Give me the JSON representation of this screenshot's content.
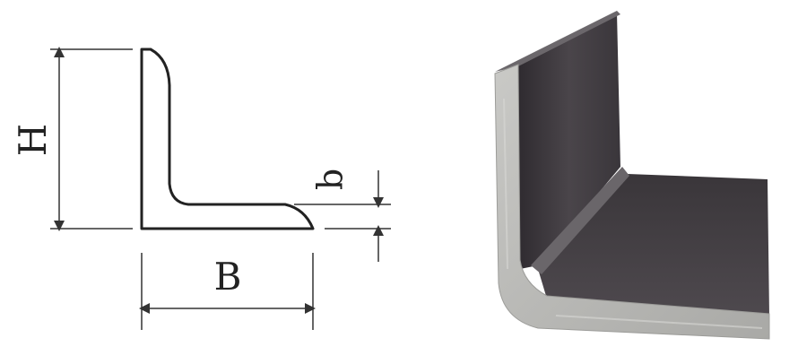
{
  "labels": {
    "height": "H",
    "width": "B",
    "thickness": "b"
  },
  "colors": {
    "line": "#222222",
    "dim_line": "#333333",
    "steel_dark": "#3c383c",
    "steel_mid": "#555055",
    "steel_edge": "#b9b9b6",
    "background": "#ffffff"
  }
}
